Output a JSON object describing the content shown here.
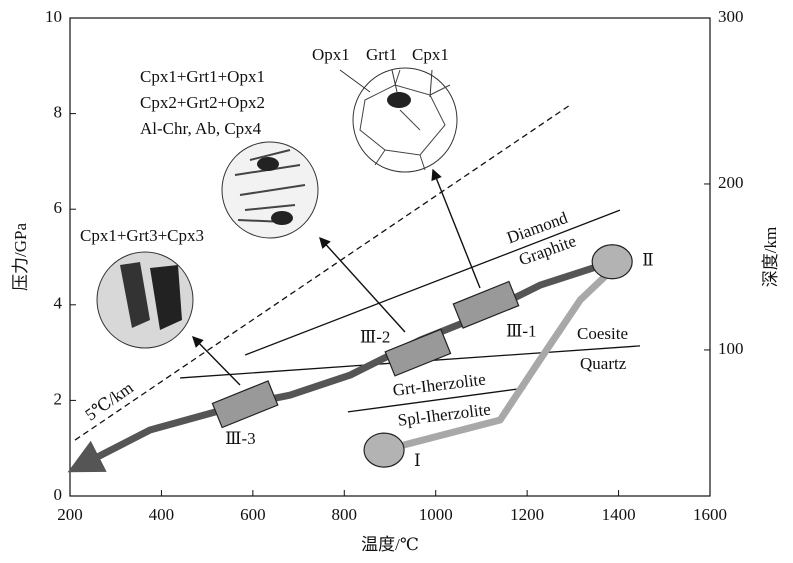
{
  "chart_data": {
    "type": "phase-diagram",
    "x_label": "温度/℃",
    "y_label": "压力/GPa",
    "y2_label": "深度/km",
    "xlim": [
      200,
      1600
    ],
    "xticks": [
      200,
      400,
      600,
      800,
      1000,
      1200,
      1400,
      1600
    ],
    "ylim": [
      0,
      10
    ],
    "yticks": [
      0,
      2,
      4,
      6,
      8,
      10
    ],
    "y2lim": [
      12,
      300
    ],
    "y2ticks": [
      100,
      200,
      300
    ],
    "boundaries": [
      {
        "x": [
          583,
          1403
        ],
        "y": [
          2.95,
          5.98
        ]
      },
      {
        "x": [
          441,
          1447
        ],
        "y": [
          2.47,
          3.14
        ]
      },
      {
        "x": [
          808,
          1196
        ],
        "y": [
          1.76,
          2.26
        ]
      },
      {
        "x": [
          211,
          1294
        ],
        "y": [
          1.17,
          8.18
        ],
        "dashed": true
      }
    ],
    "paths": [
      {
        "color": "#555555",
        "x": [
          1386,
          1228,
          1075,
          966,
          813,
          681,
          572,
          375,
          222
        ],
        "y": [
          4.9,
          4.41,
          3.68,
          3.26,
          2.53,
          2.11,
          1.9,
          1.38,
          0.63
        ]
      },
      {
        "color": "#a8a8a8",
        "x": [
          887,
          1141,
          1228,
          1316,
          1404
        ],
        "y": [
          0.96,
          1.59,
          2.85,
          4.1,
          4.9
        ]
      }
    ],
    "stages": [
      {
        "label": "Ⅰ",
        "x": 887,
        "y": 0.96,
        "shape": "ellipse"
      },
      {
        "label": "Ⅱ",
        "x": 1386,
        "y": 4.9,
        "shape": "ellipse"
      },
      {
        "label": "Ⅲ-1",
        "x": 1110,
        "y": 4.0,
        "shape": "box"
      },
      {
        "label": "Ⅲ-2",
        "x": 961,
        "y": 3.0,
        "shape": "box"
      },
      {
        "label": "Ⅲ-3",
        "x": 583,
        "y": 1.92,
        "shape": "box"
      }
    ],
    "annotations": [
      "Diamond",
      "Graphite",
      "Coesite",
      "Quartz",
      "Grt-Iherzolite",
      "Spl-Iherzolite",
      "5℃/km",
      "Cpx1+Grt1+Opx1",
      "Cpx2+Grt2+Opx2",
      "Al-Chr, Ab, Cpx4",
      "Cpx1+Grt3+Cpx3",
      "Opx1",
      "Grt1",
      "Cpx1"
    ]
  }
}
